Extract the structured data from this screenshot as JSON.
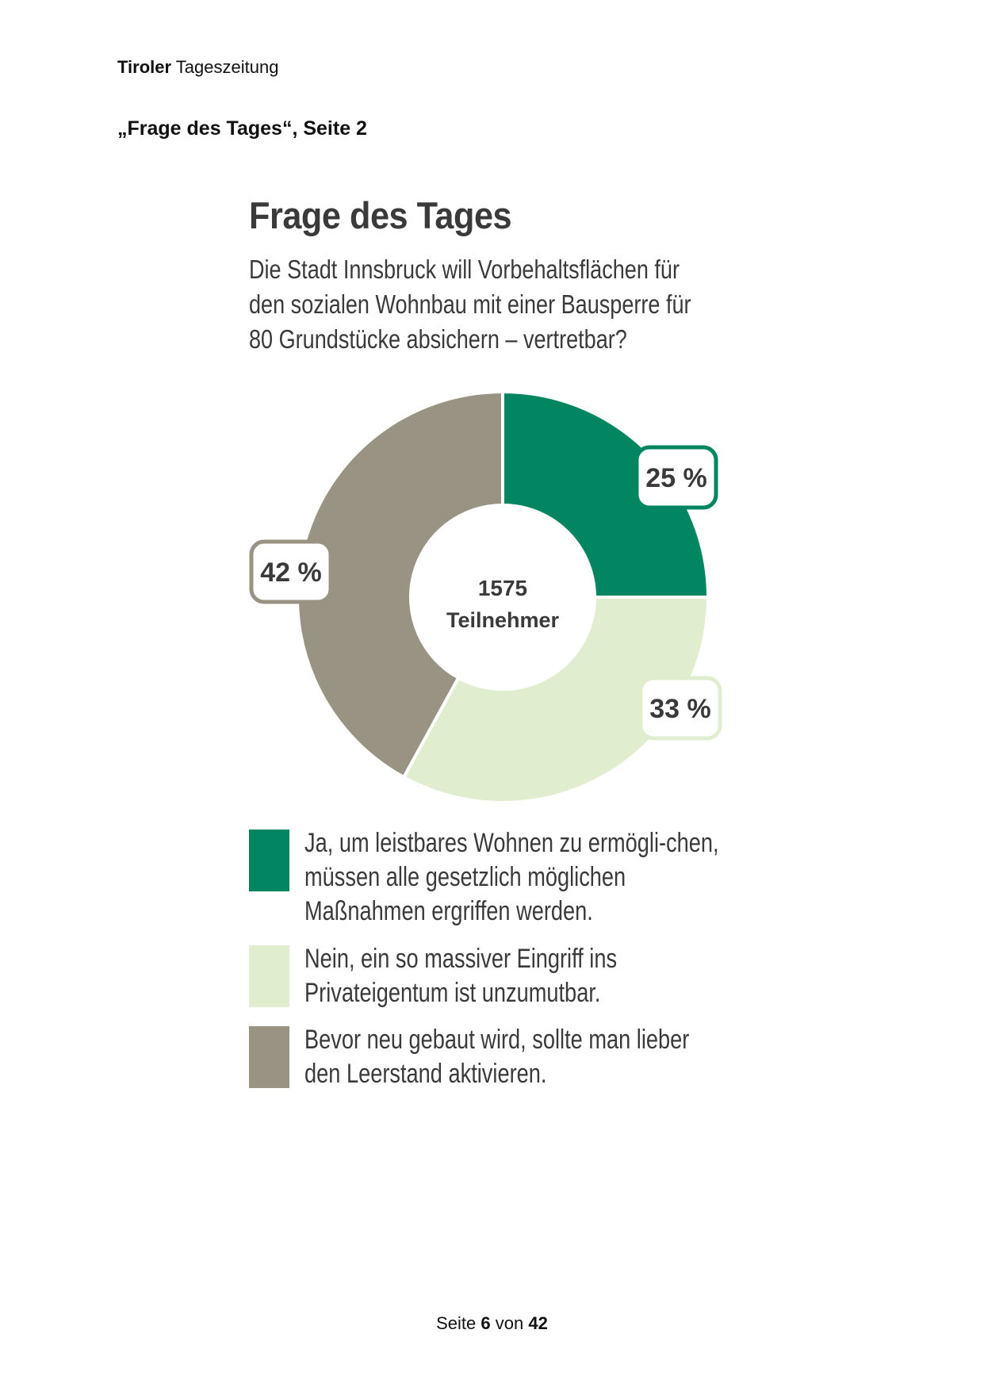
{
  "header": {
    "publication_bold": "Tiroler",
    "publication_rest": "Tageszeitung",
    "reference": "„Frage des Tages“, Seite 2"
  },
  "graphic": {
    "title": "Frage des Tages",
    "question": "Die Stadt Innsbruck will Vorbehaltsflächen für den sozialen Wohnbau mit einer Bausperre für 80 Grundstücke absichern – vertretbar?"
  },
  "chart_data": {
    "type": "pie",
    "variant": "donut",
    "center_value": "1575",
    "center_label": "Teilnehmer",
    "slices": [
      {
        "label": "Ja, um leistbares Wohnen zu ermögli-chen, müssen alle gesetzlich möglichen Maßnahmen ergriffen werden.",
        "value": 25,
        "display": "25 %",
        "color": "#028561"
      },
      {
        "label": "Nein, ein so massiver Eingriff ins Privateigentum ist unzumutbar.",
        "value": 33,
        "display": "33 %",
        "color": "#e0eecf"
      },
      {
        "label": "Bevor neu gebaut wird, sollte man lieber den Leerstand aktivieren.",
        "value": 42,
        "display": "42 %",
        "color": "#989382"
      }
    ]
  },
  "legend": {
    "items": [
      {
        "text": "Ja, um leistbares Wohnen zu ermögli-chen, müssen alle gesetzlich möglichen Maßnahmen ergriffen werden.",
        "color": "#028561"
      },
      {
        "text": "Nein, ein so massiver Eingriff ins Privateigentum ist unzumutbar.",
        "color": "#e0eecf"
      },
      {
        "text": "Bevor neu gebaut wird, sollte man lieber den Leerstand aktivieren.",
        "color": "#989382"
      }
    ]
  },
  "footer": {
    "prefix": "Seite",
    "page": "6",
    "middle": "von",
    "total": "42"
  }
}
